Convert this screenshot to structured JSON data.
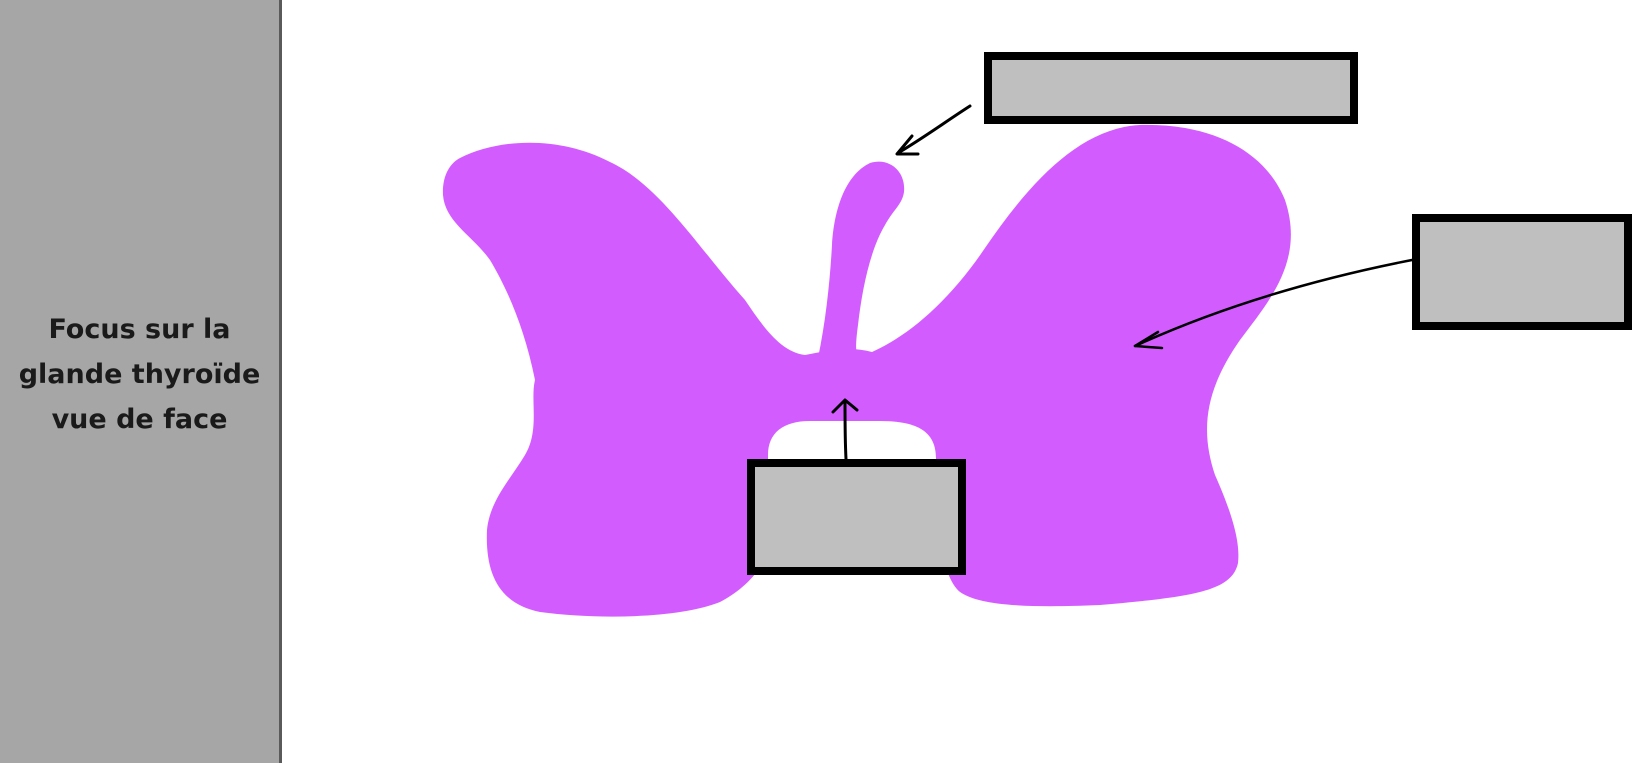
{
  "side_panel": {
    "title_lines": [
      "Focus sur la",
      "glande thyroïde",
      "vue de face"
    ]
  },
  "colors": {
    "panel_background": "#a6a6a6",
    "gland_fill": "#d35cff",
    "label_box_fill": "#bfbfbf",
    "label_box_border": "#000000",
    "arrow_stroke": "#000000"
  },
  "diagram": {
    "subject": "thyroid-gland-front-view",
    "label_boxes": [
      {
        "id": "top",
        "text": ""
      },
      {
        "id": "right",
        "text": ""
      },
      {
        "id": "bottom",
        "text": ""
      }
    ]
  }
}
